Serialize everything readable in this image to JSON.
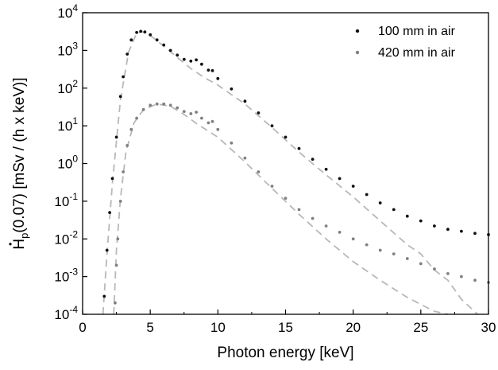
{
  "chart_data": {
    "type": "scatter",
    "xlabel": "Photon energy [keV]",
    "ylabel": "Hp(0.07) [mSv / (h x keV)]",
    "xlim": [
      0,
      30
    ],
    "ylim": [
      0.0001,
      10000
    ],
    "yscale": "log",
    "legend_position": "top-right",
    "x_ticks": [
      "0",
      "5",
      "10",
      "15",
      "20",
      "25",
      "30"
    ],
    "y_ticks": [
      {
        "base": "10",
        "exp": "-4",
        "value": 0.0001
      },
      {
        "base": "10",
        "exp": "-3",
        "value": 0.001
      },
      {
        "base": "10",
        "exp": "-2",
        "value": 0.01
      },
      {
        "base": "10",
        "exp": "-1",
        "value": 0.1
      },
      {
        "base": "10",
        "exp": "0",
        "value": 1
      },
      {
        "base": "10",
        "exp": "1",
        "value": 10
      },
      {
        "base": "10",
        "exp": "2",
        "value": 100
      },
      {
        "base": "10",
        "exp": "3",
        "value": 1000
      },
      {
        "base": "10",
        "exp": "4",
        "value": 10000
      }
    ],
    "series": [
      {
        "name": "100 mm in air",
        "color": "#111111",
        "points": [
          [
            1.6,
            0.0003
          ],
          [
            1.8,
            0.005
          ],
          [
            2.0,
            0.05
          ],
          [
            2.2,
            0.4
          ],
          [
            2.5,
            5
          ],
          [
            2.8,
            60
          ],
          [
            3.0,
            200
          ],
          [
            3.3,
            800
          ],
          [
            3.6,
            1900
          ],
          [
            4.0,
            3000
          ],
          [
            4.3,
            3200
          ],
          [
            4.6,
            3100
          ],
          [
            5.0,
            2600
          ],
          [
            5.5,
            1900
          ],
          [
            6.0,
            1400
          ],
          [
            6.5,
            1000
          ],
          [
            7.0,
            750
          ],
          [
            7.5,
            580
          ],
          [
            8.0,
            520
          ],
          [
            8.4,
            560
          ],
          [
            8.8,
            430
          ],
          [
            9.3,
            300
          ],
          [
            9.6,
            290
          ],
          [
            10.0,
            180
          ],
          [
            11.0,
            95
          ],
          [
            12.0,
            45
          ],
          [
            13.0,
            22
          ],
          [
            14.0,
            10
          ],
          [
            15.0,
            5
          ],
          [
            16.0,
            2.5
          ],
          [
            17.0,
            1.3
          ],
          [
            18.0,
            0.7
          ],
          [
            19.0,
            0.4
          ],
          [
            20.0,
            0.25
          ],
          [
            21.0,
            0.15
          ],
          [
            22.0,
            0.09
          ],
          [
            23.0,
            0.06
          ],
          [
            24.0,
            0.04
          ],
          [
            25.0,
            0.03
          ],
          [
            26.0,
            0.022
          ],
          [
            27.0,
            0.018
          ],
          [
            28.0,
            0.016
          ],
          [
            29.0,
            0.014
          ],
          [
            30.0,
            0.013
          ]
        ]
      },
      {
        "name": "420 mm in air",
        "color": "#808080",
        "points": [
          [
            2.4,
            0.0002
          ],
          [
            2.5,
            0.002
          ],
          [
            2.6,
            0.01
          ],
          [
            2.8,
            0.1
          ],
          [
            3.0,
            0.6
          ],
          [
            3.3,
            3
          ],
          [
            3.6,
            8
          ],
          [
            4.0,
            16
          ],
          [
            4.5,
            27
          ],
          [
            5.0,
            35
          ],
          [
            5.5,
            38
          ],
          [
            6.0,
            38
          ],
          [
            6.5,
            35
          ],
          [
            7.0,
            30
          ],
          [
            7.5,
            24
          ],
          [
            8.0,
            21
          ],
          [
            8.4,
            23
          ],
          [
            8.8,
            16
          ],
          [
            9.3,
            12
          ],
          [
            9.6,
            13
          ],
          [
            10.0,
            8
          ],
          [
            11.0,
            3.5
          ],
          [
            12.0,
            1.4
          ],
          [
            13.0,
            0.6
          ],
          [
            14.0,
            0.25
          ],
          [
            15.0,
            0.12
          ],
          [
            16.0,
            0.06
          ],
          [
            17.0,
            0.035
          ],
          [
            18.0,
            0.022
          ],
          [
            19.0,
            0.015
          ],
          [
            20.0,
            0.01
          ],
          [
            21.0,
            0.007
          ],
          [
            22.0,
            0.005
          ],
          [
            23.0,
            0.004
          ],
          [
            24.0,
            0.003
          ],
          [
            25.0,
            0.0022
          ],
          [
            26.0,
            0.0016
          ],
          [
            27.0,
            0.0012
          ],
          [
            28.0,
            0.001
          ],
          [
            29.0,
            0.0008
          ],
          [
            30.0,
            0.0007
          ]
        ]
      }
    ],
    "fit_lines": [
      {
        "color": "#b8b8b8",
        "dash": "dashed",
        "points": [
          [
            1.5,
            0.0001
          ],
          [
            1.8,
            0.004
          ],
          [
            2.2,
            0.3
          ],
          [
            2.8,
            50
          ],
          [
            3.4,
            900
          ],
          [
            4.0,
            2900
          ],
          [
            4.4,
            3150
          ],
          [
            5.0,
            2500
          ],
          [
            6.0,
            1300
          ],
          [
            7.0,
            650
          ],
          [
            8.0,
            330
          ],
          [
            9.0,
            190
          ],
          [
            10.0,
            120
          ],
          [
            12.0,
            38
          ],
          [
            14.0,
            9
          ],
          [
            16.0,
            2.0
          ],
          [
            18.0,
            0.5
          ],
          [
            20.0,
            0.13
          ],
          [
            22.0,
            0.03
          ],
          [
            24.0,
            0.007
          ],
          [
            25.0,
            0.004
          ],
          [
            26.0,
            0.0015
          ],
          [
            27.0,
            0.0008
          ],
          [
            28.0,
            0.00025
          ],
          [
            29.2,
            0.0001
          ]
        ]
      },
      {
        "color": "#b8b8b8",
        "dash": "dashed",
        "points": [
          [
            2.3,
            0.0001
          ],
          [
            2.5,
            0.005
          ],
          [
            2.8,
            0.12
          ],
          [
            3.2,
            2
          ],
          [
            3.8,
            12
          ],
          [
            4.5,
            27
          ],
          [
            5.5,
            38
          ],
          [
            6.5,
            33
          ],
          [
            7.5,
            20
          ],
          [
            8.5,
            11
          ],
          [
            10.0,
            5
          ],
          [
            12.0,
            1.1
          ],
          [
            14.0,
            0.22
          ],
          [
            16.0,
            0.045
          ],
          [
            18.0,
            0.01
          ],
          [
            20.0,
            0.0025
          ],
          [
            22.0,
            0.0008
          ],
          [
            24.0,
            0.00028
          ],
          [
            26.0,
            0.00012
          ],
          [
            27.0,
            0.0001
          ]
        ]
      }
    ]
  }
}
